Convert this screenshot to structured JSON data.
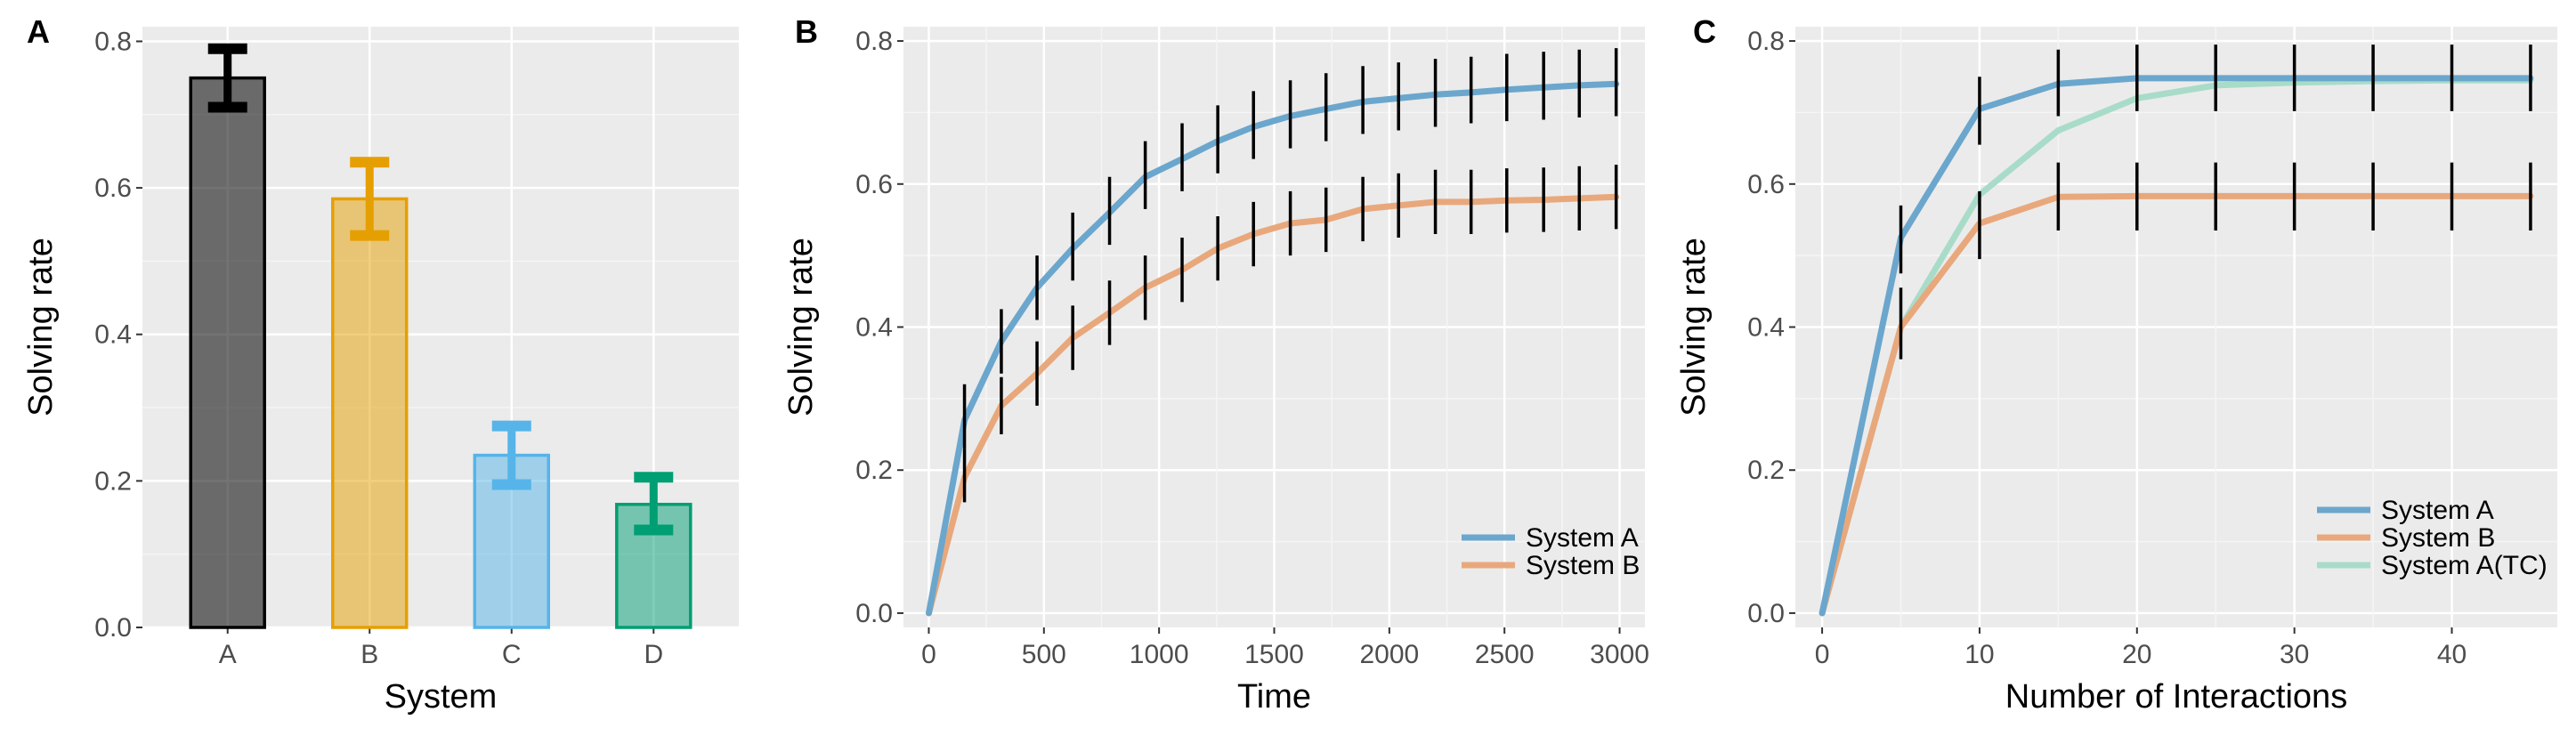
{
  "chart_data": [
    {
      "panel": "A",
      "type": "bar",
      "xlabel": "System",
      "ylabel": "Solving rate",
      "ylim": [
        0,
        0.82
      ],
      "yticks": [
        0.0,
        0.2,
        0.4,
        0.6,
        0.8
      ],
      "ytick_labels": [
        "0.0",
        "0.2",
        "0.4",
        "0.6",
        "0.8"
      ],
      "grid": true,
      "categories": [
        "A",
        "B",
        "C",
        "D"
      ],
      "values": [
        0.75,
        0.585,
        0.235,
        0.168
      ],
      "error_low": [
        0.71,
        0.535,
        0.195,
        0.133
      ],
      "error_high": [
        0.79,
        0.635,
        0.275,
        0.205
      ],
      "colors": [
        "#000000",
        "#E69F00",
        "#56B4E9",
        "#009E73"
      ]
    },
    {
      "panel": "B",
      "type": "line",
      "xlabel": "Time",
      "ylabel": "Solving rate",
      "xlim": [
        -110,
        3110
      ],
      "ylim": [
        -0.02,
        0.82
      ],
      "xticks": [
        0,
        500,
        1000,
        1500,
        2000,
        2500,
        3000
      ],
      "xtick_labels": [
        "0",
        "500",
        "1000",
        "1500",
        "2000",
        "2500",
        "3000"
      ],
      "yticks": [
        0.0,
        0.2,
        0.4,
        0.6,
        0.8
      ],
      "ytick_labels": [
        "0.0",
        "0.2",
        "0.4",
        "0.6",
        "0.8"
      ],
      "grid": true,
      "legend_position": "bottom-right",
      "series": [
        {
          "name": "System A",
          "color": "#6BA6CD",
          "x": [
            0,
            155,
            315,
            470,
            625,
            785,
            940,
            1100,
            1255,
            1410,
            1570,
            1725,
            1885,
            2040,
            2200,
            2355,
            2510,
            2670,
            2825,
            2985
          ],
          "y": [
            0.0,
            0.27,
            0.38,
            0.455,
            0.51,
            0.56,
            0.61,
            0.635,
            0.66,
            0.68,
            0.695,
            0.705,
            0.715,
            0.72,
            0.725,
            0.728,
            0.732,
            0.735,
            0.738,
            0.74
          ],
          "error_low": [
            0.0,
            0.23,
            0.335,
            0.41,
            0.465,
            0.515,
            0.565,
            0.59,
            0.615,
            0.635,
            0.65,
            0.66,
            0.67,
            0.675,
            0.68,
            0.685,
            0.688,
            0.69,
            0.693,
            0.695
          ],
          "error_high": [
            0.0,
            0.32,
            0.425,
            0.5,
            0.56,
            0.61,
            0.66,
            0.685,
            0.71,
            0.73,
            0.745,
            0.755,
            0.765,
            0.77,
            0.775,
            0.778,
            0.782,
            0.785,
            0.788,
            0.79
          ]
        },
        {
          "name": "System B",
          "color": "#E8A87C",
          "x": [
            0,
            155,
            315,
            470,
            625,
            785,
            940,
            1100,
            1255,
            1410,
            1570,
            1725,
            1885,
            2040,
            2200,
            2355,
            2510,
            2670,
            2825,
            2985
          ],
          "y": [
            0.0,
            0.19,
            0.29,
            0.335,
            0.385,
            0.42,
            0.455,
            0.48,
            0.51,
            0.53,
            0.545,
            0.55,
            0.565,
            0.57,
            0.575,
            0.575,
            0.577,
            0.578,
            0.58,
            0.582
          ],
          "error_low": [
            0.0,
            0.155,
            0.25,
            0.29,
            0.34,
            0.375,
            0.41,
            0.435,
            0.465,
            0.485,
            0.5,
            0.505,
            0.52,
            0.525,
            0.53,
            0.53,
            0.532,
            0.533,
            0.535,
            0.537
          ],
          "error_high": [
            0.0,
            0.23,
            0.33,
            0.38,
            0.43,
            0.465,
            0.5,
            0.525,
            0.555,
            0.575,
            0.59,
            0.595,
            0.61,
            0.615,
            0.62,
            0.62,
            0.622,
            0.623,
            0.625,
            0.627
          ]
        }
      ]
    },
    {
      "panel": "C",
      "type": "line",
      "xlabel": "Number of Interactions",
      "ylabel": "Solving rate",
      "xlim": [
        -1.7,
        46.7
      ],
      "ylim": [
        -0.02,
        0.82
      ],
      "xticks": [
        0,
        10,
        20,
        30,
        40
      ],
      "xtick_labels": [
        "0",
        "10",
        "20",
        "30",
        "40"
      ],
      "yticks": [
        0.0,
        0.2,
        0.4,
        0.6,
        0.8
      ],
      "ytick_labels": [
        "0.0",
        "0.2",
        "0.4",
        "0.6",
        "0.8"
      ],
      "grid": true,
      "legend_position": "bottom-right",
      "series": [
        {
          "name": "System A",
          "color": "#6BA6CD",
          "x": [
            0,
            5,
            10,
            15,
            20,
            25,
            30,
            35,
            40,
            45
          ],
          "y": [
            0.0,
            0.525,
            0.705,
            0.74,
            0.748,
            0.748,
            0.748,
            0.748,
            0.748,
            0.748
          ],
          "error_low": [
            0.0,
            0.475,
            0.655,
            0.695,
            0.702,
            0.702,
            0.702,
            0.702,
            0.702,
            0.702
          ],
          "error_high": [
            0.0,
            0.57,
            0.75,
            0.788,
            0.795,
            0.795,
            0.795,
            0.795,
            0.795,
            0.795
          ]
        },
        {
          "name": "System B",
          "color": "#E8A87C",
          "x": [
            0,
            5,
            10,
            15,
            20,
            25,
            30,
            35,
            40,
            45
          ],
          "y": [
            0.0,
            0.4,
            0.545,
            0.582,
            0.583,
            0.583,
            0.583,
            0.583,
            0.583,
            0.583
          ],
          "error_low": [
            0.0,
            0.355,
            0.495,
            0.535,
            0.535,
            0.535,
            0.535,
            0.535,
            0.535,
            0.535
          ],
          "error_high": [
            0.0,
            0.455,
            0.59,
            0.63,
            0.63,
            0.63,
            0.63,
            0.63,
            0.63,
            0.63
          ]
        },
        {
          "name": "System A(TC)",
          "color": "#A8DCC8",
          "x": [
            0,
            5,
            10,
            15,
            20,
            25,
            30,
            35,
            40,
            45
          ],
          "y": [
            0.0,
            0.4,
            0.585,
            0.675,
            0.72,
            0.738,
            0.742,
            0.744,
            0.745,
            0.745
          ]
        }
      ]
    }
  ]
}
